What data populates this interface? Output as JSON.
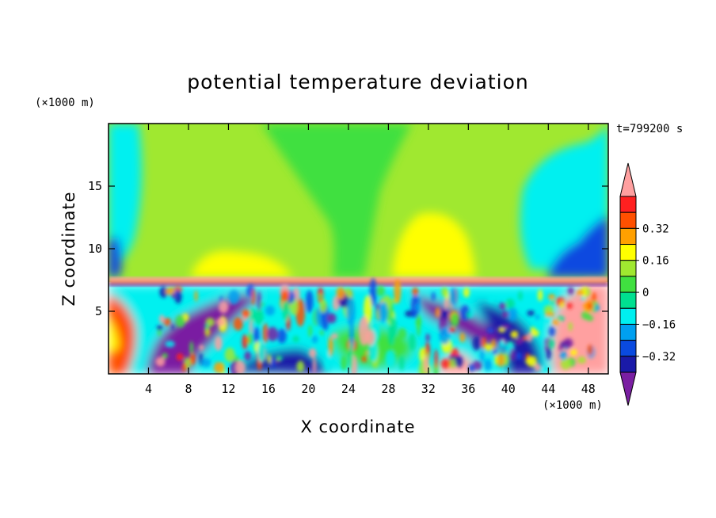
{
  "chart_data": {
    "type": "heatmap",
    "title": "potential temperature deviation",
    "xlabel": "X coordinate",
    "ylabel": "Z coordinate",
    "x_unit": "(×1000 m)",
    "y_unit": "(×1000 m)",
    "time_label": "t=799200 s",
    "xlim": [
      0,
      50
    ],
    "ylim": [
      0,
      20
    ],
    "x_ticks": [
      4,
      8,
      12,
      16,
      20,
      24,
      28,
      32,
      36,
      40,
      44,
      48
    ],
    "y_ticks": [
      5,
      10,
      15
    ],
    "colorbar": {
      "levels": [
        -0.4,
        -0.32,
        -0.24,
        -0.16,
        -0.08,
        0,
        0.08,
        0.16,
        0.24,
        0.32,
        0.4
      ],
      "colors": [
        "#7a1fa2",
        "#1a1aa8",
        "#0a4ae0",
        "#00a0f0",
        "#00f0f0",
        "#00e090",
        "#40e040",
        "#a0e830",
        "#ffff00",
        "#ffa000",
        "#ff5000",
        "#ff2020",
        "#ffa0a0"
      ],
      "tick_labels": [
        "0.32",
        "0.16",
        "0",
        "−0.16",
        "−0.32"
      ],
      "tick_values": [
        0.32,
        0.16,
        0,
        -0.16,
        -0.32
      ]
    }
  }
}
